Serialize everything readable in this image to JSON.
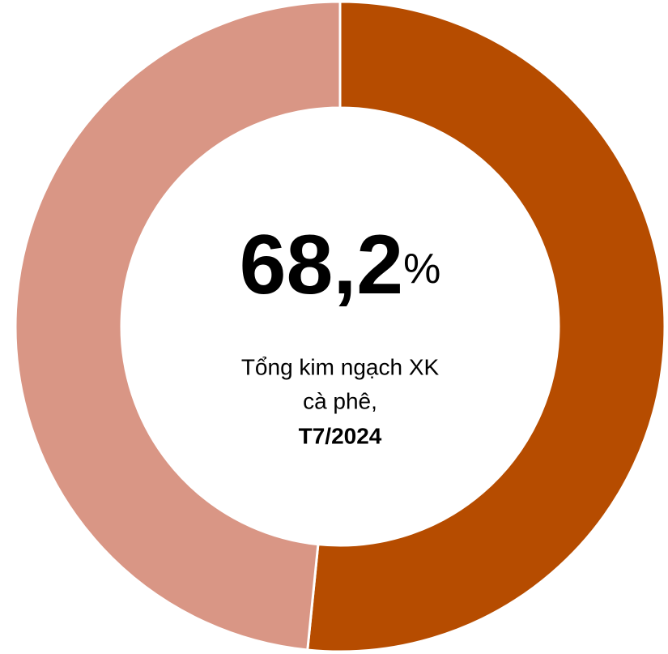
{
  "chart_data": {
    "type": "donut",
    "values": [
      51.6,
      48.4
    ],
    "colors": [
      "#b64c00",
      "#d99685"
    ],
    "center_value": "68,2",
    "center_unit": "%",
    "center_lines": [
      "Tổng kim ngạch XK",
      "cà phê,",
      "T7/2024"
    ]
  }
}
